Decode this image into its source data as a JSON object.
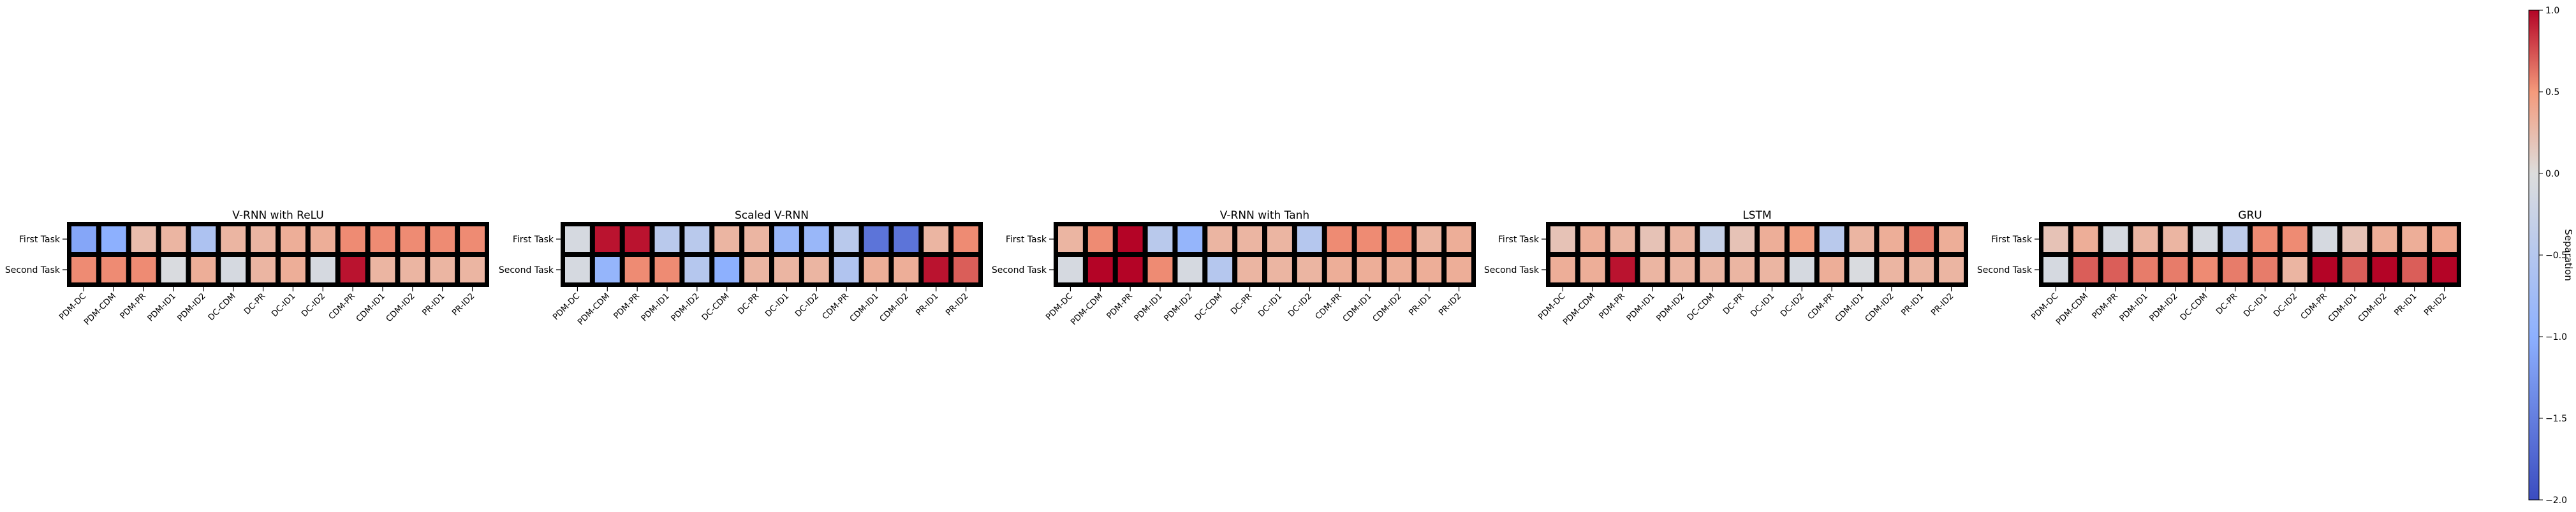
{
  "chart_data": {
    "type": "heatmap",
    "colorbar": {
      "label": "Separation",
      "range": [
        -2.0,
        1.0
      ],
      "ticks": [
        "1.0",
        "0.5",
        "0.0",
        "−0.5",
        "−1.0",
        "−1.5",
        "−2.0"
      ],
      "tick_values": [
        1.0,
        0.5,
        0.0,
        -0.5,
        -1.0,
        -1.5,
        -2.0
      ],
      "colormap": "coolwarm"
    },
    "rows": [
      "First Task",
      "Second Task"
    ],
    "panels": [
      {
        "title": "V-RNN with ReLU",
        "columns": [
          "PDM-DC",
          "PDM-CDM",
          "PDM-PR",
          "PDM-ID1",
          "PDM-ID2",
          "DC-CDM",
          "DC-PR",
          "DC-ID1",
          "DC-ID2",
          "CDM-PR",
          "CDM-ID1",
          "CDM-ID2",
          "PR-ID1",
          "PR-ID2"
        ],
        "values": [
          [
            -1.1,
            -1.0,
            0.25,
            0.3,
            -0.6,
            0.3,
            0.3,
            0.35,
            0.35,
            0.55,
            0.55,
            0.55,
            0.55,
            0.55
          ],
          [
            0.55,
            0.55,
            0.55,
            -0.05,
            0.35,
            -0.1,
            0.3,
            0.35,
            -0.1,
            0.95,
            0.3,
            0.3,
            0.3,
            0.3
          ]
        ]
      },
      {
        "title": "Scaled V-RNN",
        "columns": [
          "PDM-DC",
          "PDM-CDM",
          "PDM-PR",
          "PDM-ID1",
          "PDM-ID2",
          "DC-CDM",
          "DC-PR",
          "DC-ID1",
          "DC-ID2",
          "CDM-PR",
          "CDM-ID1",
          "CDM-ID2",
          "PR-ID1",
          "PR-ID2"
        ],
        "values": [
          [
            -0.1,
            0.95,
            0.95,
            -0.45,
            -0.45,
            0.3,
            0.3,
            -0.85,
            -0.85,
            -0.45,
            -1.6,
            -1.6,
            0.3,
            0.55
          ],
          [
            -0.1,
            -0.9,
            0.55,
            0.55,
            -0.5,
            -1.0,
            0.3,
            0.3,
            0.3,
            -0.55,
            0.35,
            0.35,
            0.95,
            0.7
          ]
        ]
      },
      {
        "title": "V-RNN with Tanh",
        "columns": [
          "PDM-DC",
          "PDM-CDM",
          "PDM-PR",
          "PDM-ID1",
          "PDM-ID2",
          "DC-CDM",
          "DC-PR",
          "DC-ID1",
          "DC-ID2",
          "CDM-PR",
          "CDM-ID1",
          "CDM-ID2",
          "PR-ID1",
          "PR-ID2"
        ],
        "values": [
          [
            0.3,
            0.55,
            1.0,
            -0.45,
            -0.9,
            0.3,
            0.3,
            0.3,
            -0.5,
            0.55,
            0.55,
            0.55,
            0.3,
            0.35
          ],
          [
            -0.1,
            1.0,
            1.0,
            0.55,
            -0.1,
            -0.5,
            0.3,
            0.3,
            0.3,
            0.35,
            0.35,
            0.35,
            0.35,
            0.35
          ]
        ]
      },
      {
        "title": "LSTM",
        "columns": [
          "PDM-DC",
          "PDM-CDM",
          "PDM-PR",
          "PDM-ID1",
          "PDM-ID2",
          "DC-CDM",
          "DC-PR",
          "DC-ID1",
          "DC-ID2",
          "CDM-PR",
          "CDM-ID1",
          "CDM-ID2",
          "PR-ID1",
          "PR-ID2"
        ],
        "values": [
          [
            0.2,
            0.35,
            0.3,
            0.2,
            0.3,
            -0.3,
            0.2,
            0.35,
            0.45,
            -0.45,
            0.3,
            0.35,
            0.6,
            0.35
          ],
          [
            0.35,
            0.35,
            0.95,
            0.3,
            0.3,
            0.3,
            0.3,
            0.3,
            -0.1,
            0.35,
            -0.05,
            0.3,
            0.3,
            0.3
          ]
        ]
      },
      {
        "title": "GRU",
        "columns": [
          "PDM-DC",
          "PDM-CDM",
          "PDM-PR",
          "PDM-ID1",
          "PDM-ID2",
          "DC-CDM",
          "DC-PR",
          "DC-ID1",
          "DC-ID2",
          "CDM-PR",
          "CDM-ID1",
          "CDM-ID2",
          "PR-ID1",
          "PR-ID2"
        ],
        "values": [
          [
            0.2,
            0.35,
            -0.1,
            0.3,
            0.3,
            -0.1,
            -0.4,
            0.55,
            0.55,
            -0.1,
            0.2,
            0.35,
            0.35,
            0.4
          ],
          [
            -0.1,
            0.7,
            0.7,
            0.6,
            0.6,
            0.55,
            0.6,
            0.6,
            0.3,
            1.0,
            0.7,
            1.0,
            0.7,
            1.0
          ]
        ]
      }
    ]
  }
}
